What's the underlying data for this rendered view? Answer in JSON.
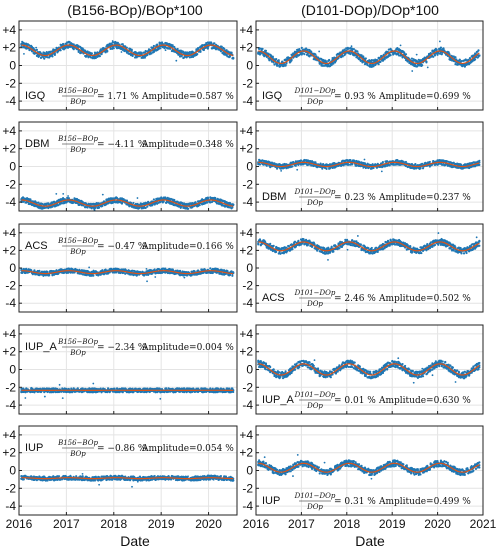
{
  "chart_data": {
    "type": "scatter",
    "column_titles": [
      "(B156-BOp)/BOp*100",
      "(D101-DOp)/DOp*100"
    ],
    "xlabel": "Date",
    "xticks_left": [
      "2016",
      "2017",
      "2018",
      "2019",
      "2020"
    ],
    "xticks_right": [
      "2016",
      "2017",
      "2018",
      "2019",
      "2020",
      "2021"
    ],
    "xlim_left": [
      2016,
      2020.6
    ],
    "xlim_right": [
      2016,
      2021
    ],
    "ylim": [
      -5,
      5
    ],
    "yticks": [
      "+4",
      "+2",
      "0",
      "-2",
      "-4"
    ],
    "grid": true,
    "colors": {
      "points": "#1f77b4",
      "fit": "#d9541a",
      "axis": "#222222",
      "grid": "#e4e4e4"
    },
    "panels": [
      {
        "site": "IGQ",
        "frac": {
          "num": "B156−BOp",
          "den": "BOp"
        },
        "mean": "= 1.71 %",
        "amplitude": "Amplitude=0.587 %",
        "label_pos": "lower",
        "offset": 1.71,
        "amp": 0.587
      },
      {
        "site": "IGQ",
        "frac": {
          "num": "D101−DOp",
          "den": "DOp"
        },
        "mean": "= 0.93 %",
        "amplitude": "Amplitude=0.699 %",
        "label_pos": "lower",
        "offset": 0.93,
        "amp": 0.699
      },
      {
        "site": "DBM",
        "frac": {
          "num": "B156−BOp",
          "den": "BOp"
        },
        "mean": "= −4.11 %",
        "amplitude": "Amplitude=0.348 %",
        "label_pos": "upper",
        "offset": -4.11,
        "amp": 0.348
      },
      {
        "site": "DBM",
        "frac": {
          "num": "D101−DOp",
          "den": "DOp"
        },
        "mean": "= 0.23 %",
        "amplitude": "Amplitude=0.237 %",
        "label_pos": "lower",
        "offset": 0.23,
        "amp": 0.237
      },
      {
        "site": "ACS",
        "frac": {
          "num": "B156−BOp",
          "den": "BOp"
        },
        "mean": "= −0.47 %",
        "amplitude": "Amplitude=0.166 %",
        "label_pos": "upper",
        "offset": -0.47,
        "amp": 0.166
      },
      {
        "site": "ACS",
        "frac": {
          "num": "D101−DOp",
          "den": "DOp"
        },
        "mean": "= 2.46 %",
        "amplitude": "Amplitude=0.502 %",
        "label_pos": "lower",
        "offset": 2.46,
        "amp": 0.502
      },
      {
        "site": "IUP_A",
        "frac": {
          "num": "B156−BOp",
          "den": "BOp"
        },
        "mean": "= −2.34 %",
        "amplitude": "Amplitude=0.004 %",
        "label_pos": "upper",
        "offset": -2.34,
        "amp": 0.004
      },
      {
        "site": "IUP_A",
        "frac": {
          "num": "D101−DOp",
          "den": "DOp"
        },
        "mean": "= 0.01 %",
        "amplitude": "Amplitude=0.630 %",
        "label_pos": "lower",
        "offset": 0.01,
        "amp": 0.63
      },
      {
        "site": "IUP",
        "frac": {
          "num": "B156−BOp",
          "den": "BOp"
        },
        "mean": "= −0.86 %",
        "amplitude": "Amplitude=0.054 %",
        "label_pos": "upper",
        "offset": -0.86,
        "amp": 0.054
      },
      {
        "site": "IUP",
        "frac": {
          "num": "D101−DOp",
          "den": "DOp"
        },
        "mean": "= 0.31 %",
        "amplitude": "Amplitude=0.499 %",
        "label_pos": "lower",
        "offset": 0.31,
        "amp": 0.499
      }
    ]
  }
}
